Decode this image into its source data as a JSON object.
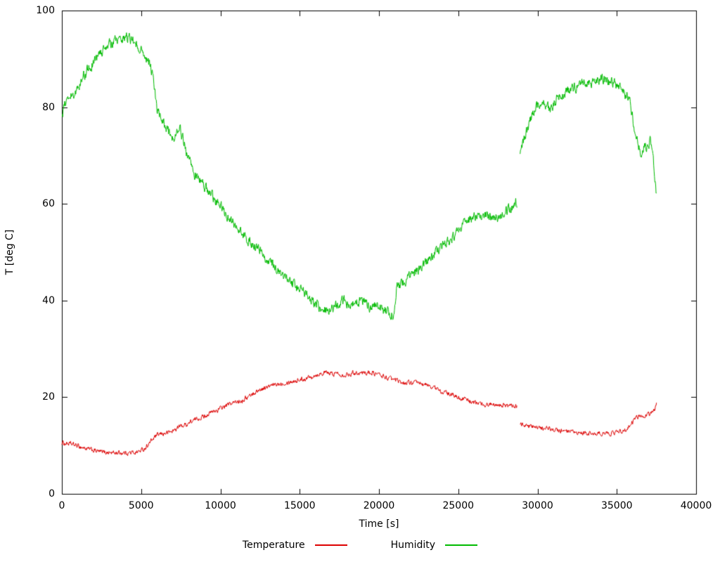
{
  "chart_data": {
    "type": "line",
    "title": "",
    "xlabel": "Time [s]",
    "ylabel": "T [deg C]",
    "xlim": [
      0,
      40000
    ],
    "ylim": [
      0,
      100
    ],
    "xticks": [
      0,
      5000,
      10000,
      15000,
      20000,
      25000,
      30000,
      35000,
      40000
    ],
    "yticks": [
      0,
      20,
      40,
      60,
      80,
      100
    ],
    "grid": false,
    "legend_position": "bottom-center",
    "background_color": "#ffffff",
    "axis_color": "#000000",
    "series": [
      {
        "name": "Temperature",
        "color": "#dd0000",
        "noise": 0.45,
        "points": [
          [
            0,
            10.5
          ],
          [
            400,
            10.4
          ],
          [
            800,
            10.1
          ],
          [
            1200,
            9.7
          ],
          [
            1600,
            9.3
          ],
          [
            2000,
            9.0
          ],
          [
            2400,
            8.7
          ],
          [
            2800,
            8.6
          ],
          [
            3200,
            8.5
          ],
          [
            3600,
            8.5
          ],
          [
            4000,
            8.5
          ],
          [
            4400,
            8.5
          ],
          [
            4800,
            8.7
          ],
          [
            5200,
            9.3
          ],
          [
            5600,
            10.8
          ],
          [
            5900,
            11.9
          ],
          [
            6200,
            12.3
          ],
          [
            6600,
            12.6
          ],
          [
            7000,
            13.0
          ],
          [
            7400,
            13.9
          ],
          [
            7800,
            14.3
          ],
          [
            8200,
            15.0
          ],
          [
            8600,
            15.6
          ],
          [
            9000,
            16.1
          ],
          [
            9400,
            16.8
          ],
          [
            9800,
            17.3
          ],
          [
            10200,
            18.0
          ],
          [
            10600,
            18.6
          ],
          [
            11000,
            19.0
          ],
          [
            11400,
            19.4
          ],
          [
            11800,
            20.2
          ],
          [
            12200,
            21.0
          ],
          [
            12600,
            21.7
          ],
          [
            13000,
            22.1
          ],
          [
            13400,
            22.5
          ],
          [
            13800,
            22.9
          ],
          [
            14200,
            23.1
          ],
          [
            14600,
            23.3
          ],
          [
            15000,
            23.6
          ],
          [
            15400,
            23.9
          ],
          [
            15800,
            24.4
          ],
          [
            16200,
            24.8
          ],
          [
            16600,
            25.1
          ],
          [
            17000,
            24.8
          ],
          [
            17400,
            25.0
          ],
          [
            17800,
            24.6
          ],
          [
            18200,
            24.9
          ],
          [
            18600,
            25.1
          ],
          [
            19000,
            25.0
          ],
          [
            19400,
            25.1
          ],
          [
            19800,
            24.9
          ],
          [
            20200,
            24.4
          ],
          [
            20600,
            23.9
          ],
          [
            21000,
            23.5
          ],
          [
            21400,
            23.1
          ],
          [
            21800,
            23.0
          ],
          [
            22200,
            23.0
          ],
          [
            22600,
            22.8
          ],
          [
            23000,
            22.5
          ],
          [
            23400,
            22.1
          ],
          [
            23800,
            21.4
          ],
          [
            24200,
            20.9
          ],
          [
            24600,
            20.4
          ],
          [
            25000,
            20.0
          ],
          [
            25400,
            19.6
          ],
          [
            25800,
            19.1
          ],
          [
            26200,
            18.7
          ],
          [
            26600,
            18.5
          ],
          [
            27000,
            18.5
          ],
          [
            27400,
            18.7
          ],
          [
            27800,
            18.4
          ],
          [
            28200,
            18.2
          ],
          [
            28700,
            18.0
          ],
          null,
          [
            28900,
            14.6
          ],
          [
            29300,
            14.2
          ],
          [
            29700,
            13.8
          ],
          [
            30100,
            13.6
          ],
          [
            30500,
            13.5
          ],
          [
            30900,
            13.4
          ],
          [
            31300,
            13.1
          ],
          [
            31700,
            12.9
          ],
          [
            32100,
            12.7
          ],
          [
            32500,
            12.5
          ],
          [
            32900,
            12.5
          ],
          [
            33300,
            12.5
          ],
          [
            33700,
            12.4
          ],
          [
            34100,
            12.5
          ],
          [
            34500,
            12.5
          ],
          [
            34900,
            12.7
          ],
          [
            35300,
            13.0
          ],
          [
            35700,
            13.6
          ],
          [
            36000,
            14.9
          ],
          [
            36300,
            15.9
          ],
          [
            36600,
            16.2
          ],
          [
            36900,
            16.4
          ],
          [
            37200,
            16.7
          ],
          [
            37400,
            17.5
          ],
          [
            37500,
            19.0
          ]
        ]
      },
      {
        "name": "Humidity",
        "color": "#00bb00",
        "noise": 1.0,
        "points": [
          [
            0,
            78.5
          ],
          [
            200,
            80.5
          ],
          [
            500,
            82.0
          ],
          [
            800,
            83.0
          ],
          [
            1100,
            84.5
          ],
          [
            1400,
            86.5
          ],
          [
            1700,
            88.0
          ],
          [
            2000,
            89.5
          ],
          [
            2300,
            90.5
          ],
          [
            2600,
            91.8
          ],
          [
            2900,
            92.8
          ],
          [
            3200,
            93.5
          ],
          [
            3500,
            94.0
          ],
          [
            3800,
            94.4
          ],
          [
            4100,
            94.5
          ],
          [
            4400,
            94.0
          ],
          [
            4700,
            93.3
          ],
          [
            5000,
            92.0
          ],
          [
            5300,
            90.5
          ],
          [
            5600,
            88.5
          ],
          [
            5800,
            85.0
          ],
          [
            6000,
            79.5
          ],
          [
            6300,
            77.5
          ],
          [
            6600,
            75.5
          ],
          [
            6900,
            73.8
          ],
          [
            7200,
            74.5
          ],
          [
            7400,
            75.8
          ],
          [
            7600,
            74.0
          ],
          [
            7900,
            70.5
          ],
          [
            8200,
            67.5
          ],
          [
            8500,
            65.5
          ],
          [
            8800,
            64.3
          ],
          [
            9100,
            63.2
          ],
          [
            9400,
            62.0
          ],
          [
            9700,
            60.8
          ],
          [
            10000,
            59.5
          ],
          [
            10300,
            58.0
          ],
          [
            10600,
            56.8
          ],
          [
            11000,
            55.2
          ],
          [
            11400,
            53.8
          ],
          [
            11800,
            52.5
          ],
          [
            12200,
            51.0
          ],
          [
            12600,
            49.7
          ],
          [
            13000,
            48.2
          ],
          [
            13400,
            46.8
          ],
          [
            13800,
            45.6
          ],
          [
            14200,
            44.4
          ],
          [
            14600,
            43.3
          ],
          [
            15000,
            42.2
          ],
          [
            15400,
            41.2
          ],
          [
            15800,
            39.9
          ],
          [
            16200,
            38.8
          ],
          [
            16600,
            38.2
          ],
          [
            17000,
            38.0
          ],
          [
            17400,
            39.3
          ],
          [
            17800,
            40.1
          ],
          [
            18200,
            39.2
          ],
          [
            18600,
            39.8
          ],
          [
            19000,
            40.2
          ],
          [
            19400,
            38.7
          ],
          [
            19800,
            39.3
          ],
          [
            20200,
            38.2
          ],
          [
            20600,
            37.3
          ],
          [
            20900,
            37.0
          ],
          [
            21100,
            42.3
          ],
          [
            21500,
            43.6
          ],
          [
            21900,
            44.8
          ],
          [
            22300,
            46.0
          ],
          [
            22700,
            47.2
          ],
          [
            23100,
            48.4
          ],
          [
            23500,
            49.6
          ],
          [
            23900,
            50.8
          ],
          [
            24300,
            52.0
          ],
          [
            24700,
            53.2
          ],
          [
            25100,
            54.6
          ],
          [
            25500,
            56.0
          ],
          [
            25900,
            57.3
          ],
          [
            26300,
            58.0
          ],
          [
            26700,
            57.7
          ],
          [
            27100,
            57.4
          ],
          [
            27500,
            57.1
          ],
          [
            27900,
            58.3
          ],
          [
            28300,
            59.2
          ],
          [
            28700,
            60.3
          ],
          null,
          [
            28900,
            71.0
          ],
          [
            29200,
            74.0
          ],
          [
            29500,
            77.0
          ],
          [
            29800,
            79.5
          ],
          [
            30100,
            80.8
          ],
          [
            30400,
            80.9
          ],
          [
            30700,
            79.6
          ],
          [
            31000,
            80.2
          ],
          [
            31300,
            82.4
          ],
          [
            31600,
            82.9
          ],
          [
            31900,
            83.3
          ],
          [
            32300,
            83.8
          ],
          [
            32700,
            84.3
          ],
          [
            33000,
            85.4
          ],
          [
            33300,
            85.0
          ],
          [
            33600,
            85.4
          ],
          [
            33900,
            85.8
          ],
          [
            34200,
            85.7
          ],
          [
            34500,
            85.3
          ],
          [
            34800,
            85.0
          ],
          [
            35100,
            84.3
          ],
          [
            35400,
            83.0
          ],
          [
            35700,
            82.4
          ],
          [
            35900,
            80.0
          ],
          [
            36100,
            75.5
          ],
          [
            36300,
            72.8
          ],
          [
            36500,
            70.8
          ],
          [
            36700,
            71.8
          ],
          [
            36900,
            71.4
          ],
          [
            37100,
            72.8
          ],
          [
            37250,
            71.5
          ],
          [
            37350,
            67.0
          ],
          [
            37450,
            63.5
          ],
          [
            37500,
            62.0
          ]
        ]
      }
    ]
  }
}
